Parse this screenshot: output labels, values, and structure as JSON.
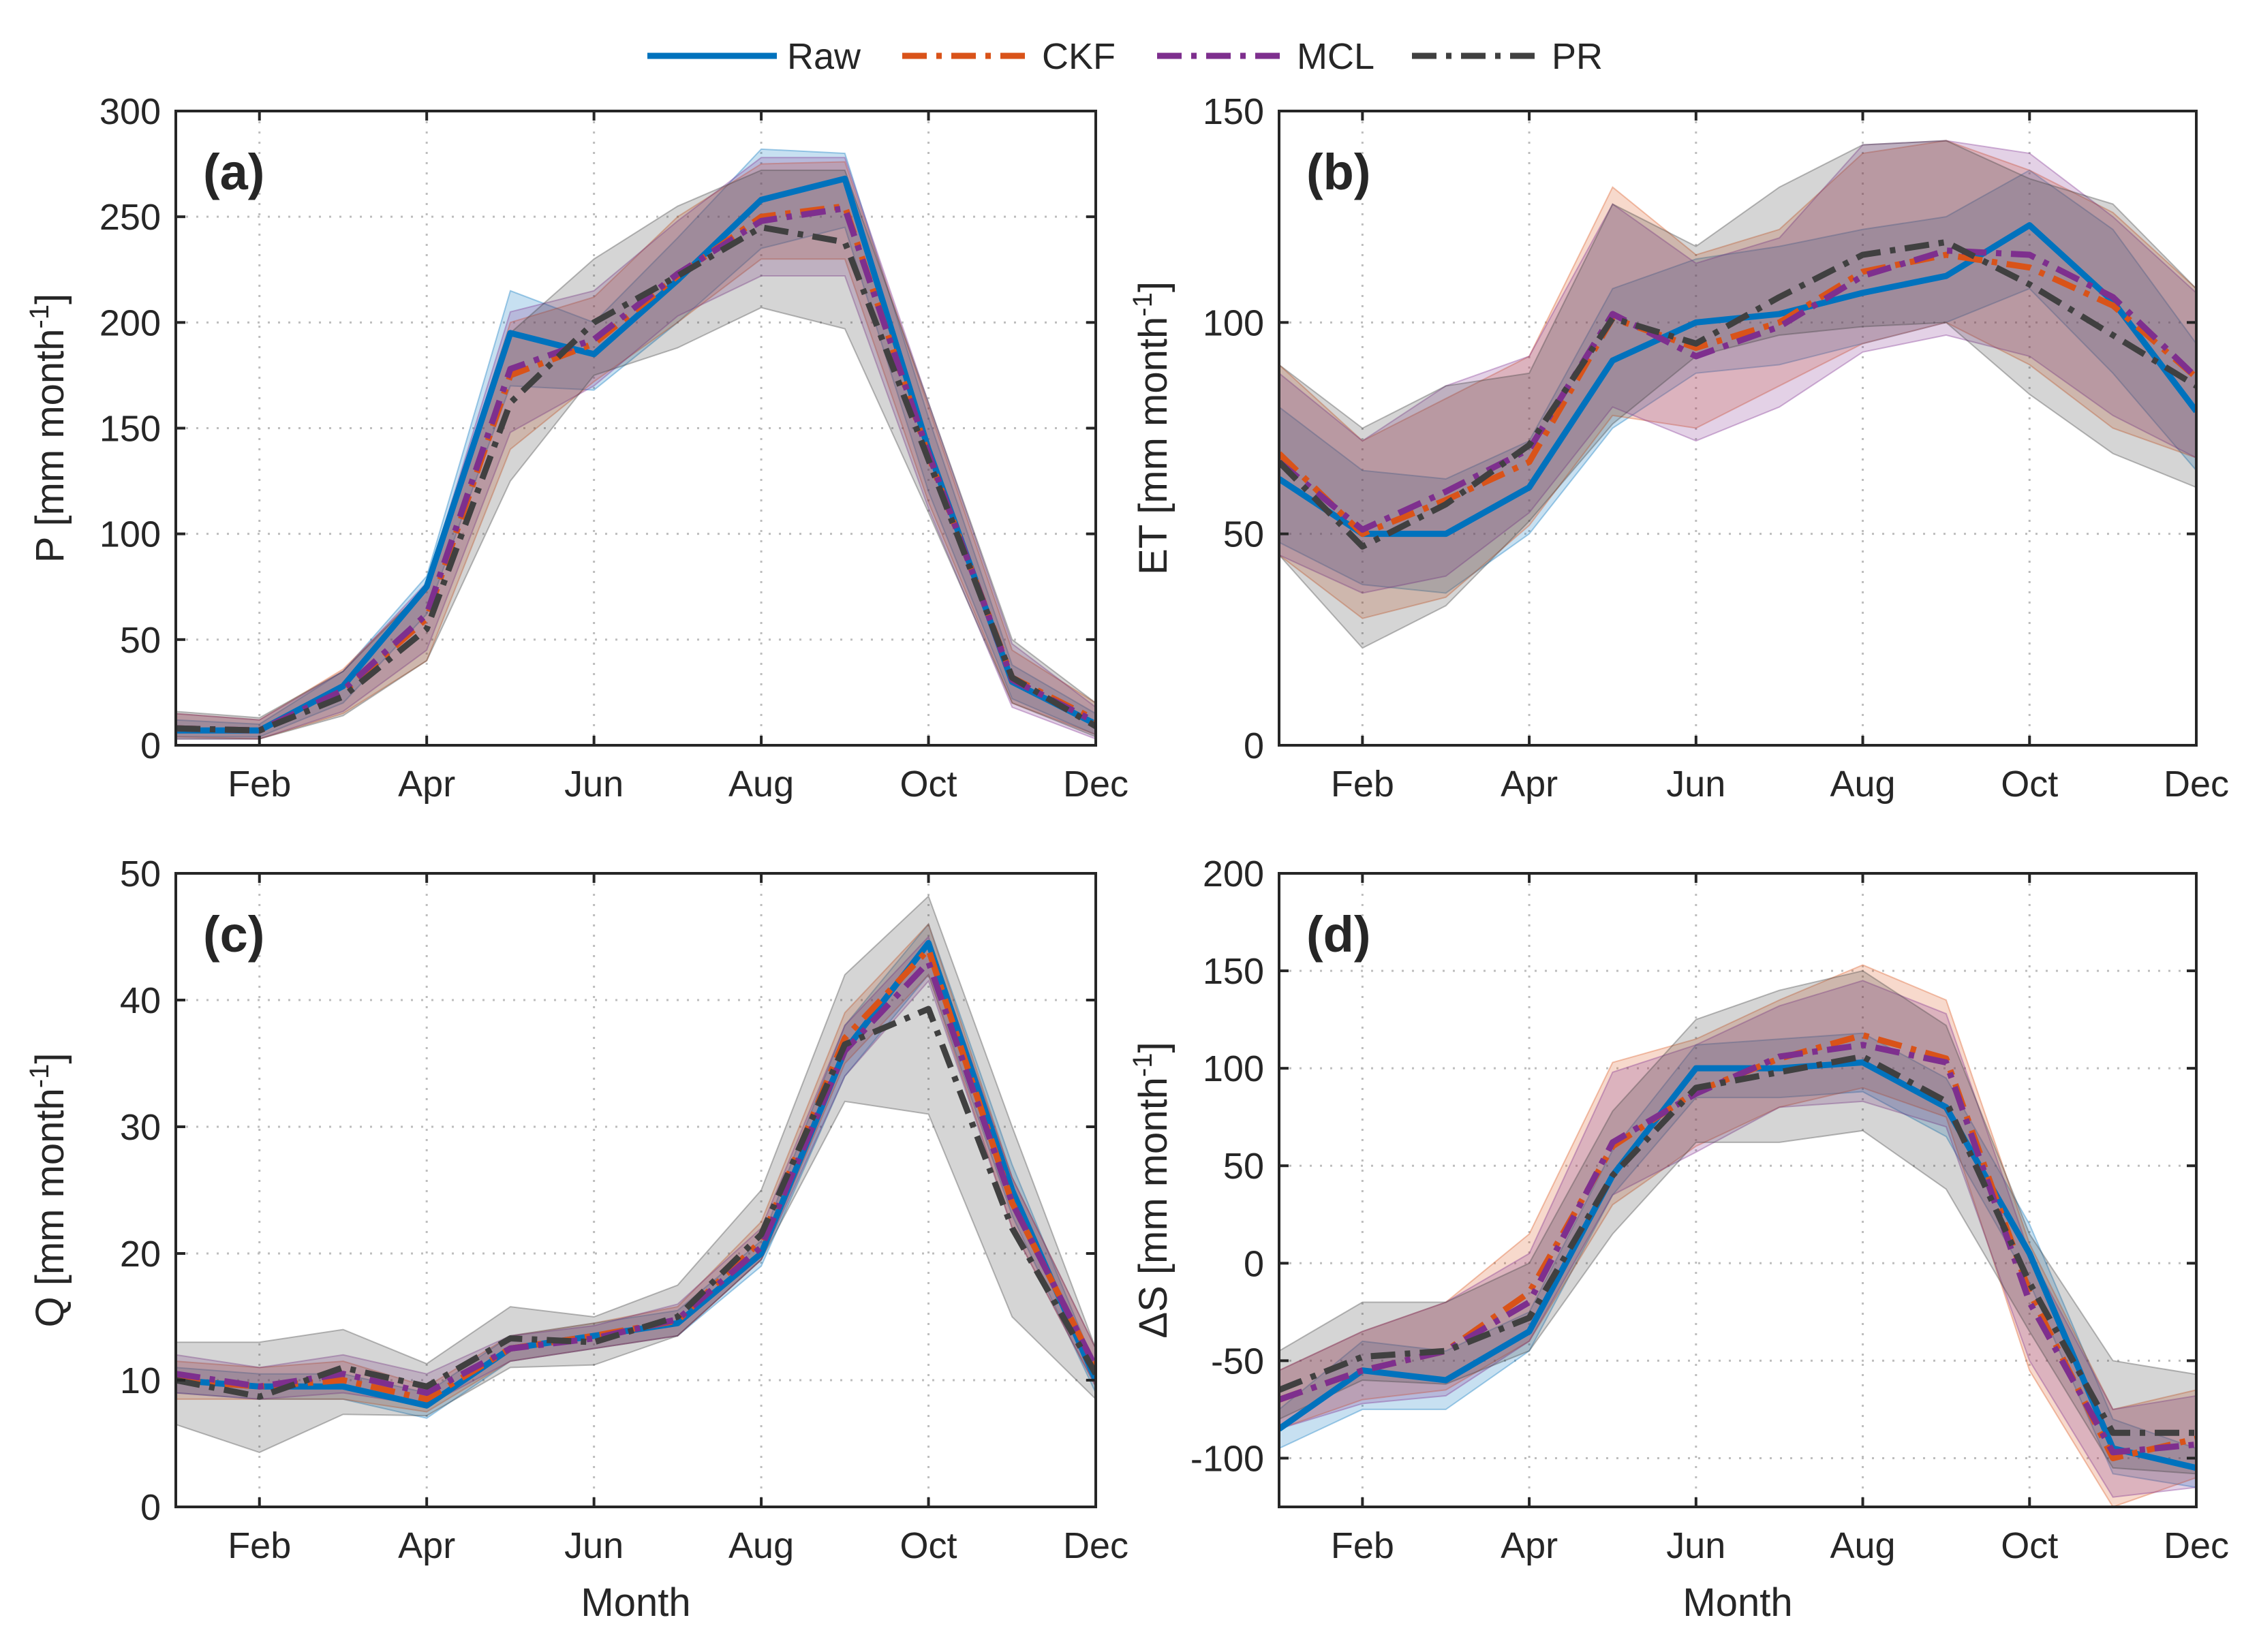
{
  "figure": {
    "legend": [
      {
        "name": "Raw",
        "color": "#0072BD",
        "dash": "solid"
      },
      {
        "name": "CKF",
        "color": "#D95319",
        "dash": "dashdot"
      },
      {
        "name": "MCL",
        "color": "#7E2F8E",
        "dash": "dashdot"
      },
      {
        "name": "PR",
        "color": "#404040",
        "dash": "dashdot"
      }
    ]
  },
  "chart_data": [
    {
      "type": "line",
      "panel": "(a)",
      "title": "",
      "xlabel": "",
      "ylabel": "P [mm month",
      "ylabel_sup": "-1",
      "ylabel_tail": "]",
      "x": [
        1,
        2,
        3,
        4,
        5,
        6,
        7,
        8,
        9,
        10,
        11,
        12
      ],
      "xlim": [
        1,
        12
      ],
      "xticks": [
        2,
        4,
        6,
        8,
        10,
        12
      ],
      "xtick_labels": [
        "Feb",
        "Apr",
        "Jun",
        "Aug",
        "Oct",
        "Dec"
      ],
      "ylim": [
        0,
        300
      ],
      "yticks": [
        0,
        50,
        100,
        150,
        200,
        250,
        300
      ],
      "grid": true,
      "series": [
        {
          "name": "Raw",
          "values": [
            7,
            7,
            28,
            75,
            195,
            185,
            220,
            258,
            268,
            140,
            30,
            10
          ],
          "band_lo": [
            4,
            4,
            20,
            62,
            170,
            168,
            200,
            235,
            245,
            120,
            22,
            5
          ],
          "band_hi": [
            12,
            10,
            35,
            80,
            215,
            200,
            240,
            282,
            280,
            155,
            38,
            15
          ]
        },
        {
          "name": "CKF",
          "values": [
            8,
            7,
            25,
            60,
            175,
            190,
            222,
            250,
            255,
            137,
            32,
            12
          ],
          "band_lo": [
            4,
            3,
            15,
            40,
            140,
            172,
            200,
            230,
            230,
            115,
            20,
            5
          ],
          "band_hi": [
            15,
            12,
            36,
            75,
            200,
            212,
            250,
            275,
            276,
            160,
            45,
            20
          ]
        },
        {
          "name": "MCL",
          "values": [
            8,
            7,
            26,
            62,
            178,
            192,
            223,
            248,
            254,
            138,
            31,
            11
          ],
          "band_lo": [
            3,
            3,
            16,
            45,
            148,
            170,
            203,
            222,
            222,
            112,
            18,
            3
          ],
          "band_hi": [
            15,
            12,
            35,
            77,
            205,
            215,
            248,
            278,
            278,
            162,
            48,
            18
          ]
        },
        {
          "name": "PR",
          "values": [
            8,
            7,
            23,
            55,
            162,
            200,
            222,
            245,
            238,
            135,
            32,
            9
          ],
          "band_lo": [
            3,
            3,
            14,
            40,
            125,
            175,
            188,
            207,
            197,
            110,
            20,
            4
          ],
          "band_hi": [
            16,
            13,
            35,
            75,
            195,
            230,
            255,
            272,
            272,
            162,
            50,
            20
          ]
        }
      ]
    },
    {
      "type": "line",
      "panel": "(b)",
      "title": "",
      "xlabel": "",
      "ylabel": "ET [mm month",
      "ylabel_sup": "-1",
      "ylabel_tail": "]",
      "x": [
        1,
        2,
        3,
        4,
        5,
        6,
        7,
        8,
        9,
        10,
        11,
        12
      ],
      "xlim": [
        1,
        12
      ],
      "xticks": [
        2,
        4,
        6,
        8,
        10,
        12
      ],
      "xtick_labels": [
        "Feb",
        "Apr",
        "Jun",
        "Aug",
        "Oct",
        "Dec"
      ],
      "ylim": [
        0,
        150
      ],
      "yticks": [
        0,
        50,
        100,
        150
      ],
      "grid": true,
      "series": [
        {
          "name": "Raw",
          "values": [
            63,
            50,
            50,
            61,
            91,
            100,
            102,
            107,
            111,
            123,
            105,
            79
          ],
          "band_lo": [
            48,
            38,
            36,
            50,
            75,
            88,
            90,
            95,
            100,
            108,
            88,
            65
          ],
          "band_hi": [
            80,
            65,
            63,
            72,
            108,
            115,
            118,
            122,
            125,
            136,
            122,
            95
          ]
        },
        {
          "name": "CKF",
          "values": [
            69,
            50,
            58,
            67,
            101,
            94,
            100,
            112,
            116,
            113,
            104,
            87
          ],
          "band_lo": [
            45,
            30,
            35,
            52,
            78,
            75,
            85,
            95,
            100,
            90,
            75,
            68
          ],
          "band_hi": [
            90,
            72,
            82,
            92,
            132,
            116,
            122,
            140,
            143,
            136,
            126,
            108
          ]
        },
        {
          "name": "MCL",
          "values": [
            67,
            51,
            60,
            70,
            102,
            92,
            99,
            111,
            117,
            116,
            106,
            87
          ],
          "band_lo": [
            45,
            36,
            40,
            55,
            80,
            72,
            80,
            93,
            97,
            92,
            78,
            68
          ],
          "band_hi": [
            88,
            72,
            85,
            92,
            128,
            114,
            120,
            142,
            143,
            140,
            125,
            107
          ]
        },
        {
          "name": "PR",
          "values": [
            67,
            47,
            57,
            71,
            101,
            95,
            106,
            116,
            119,
            109,
            97,
            85
          ],
          "band_lo": [
            45,
            23,
            33,
            53,
            76,
            92,
            97,
            99,
            100,
            83,
            69,
            61
          ],
          "band_hi": [
            90,
            75,
            85,
            88,
            128,
            118,
            132,
            142,
            143,
            134,
            128,
            108
          ]
        }
      ]
    },
    {
      "type": "line",
      "panel": "(c)",
      "title": "",
      "xlabel": "Month",
      "ylabel": "Q [mm month",
      "ylabel_sup": "-1",
      "ylabel_tail": "]",
      "x": [
        1,
        2,
        3,
        4,
        5,
        6,
        7,
        8,
        9,
        10,
        11,
        12
      ],
      "xlim": [
        1,
        12
      ],
      "xticks": [
        2,
        4,
        6,
        8,
        10,
        12
      ],
      "xtick_labels": [
        "Feb",
        "Apr",
        "Jun",
        "Aug",
        "Oct",
        "Dec"
      ],
      "ylim": [
        0,
        50
      ],
      "yticks": [
        0,
        10,
        20,
        30,
        40,
        50
      ],
      "grid": true,
      "series": [
        {
          "name": "Raw",
          "values": [
            10,
            9.5,
            9.5,
            8,
            12.5,
            13.5,
            14.5,
            20,
            36,
            44.5,
            25,
            10
          ],
          "band_lo": [
            9,
            8.5,
            8.5,
            7,
            11.5,
            12.5,
            13.5,
            19,
            34,
            42,
            23,
            9
          ],
          "band_hi": [
            11,
            10.5,
            10.5,
            9,
            13.5,
            14.5,
            15.5,
            21,
            38,
            46,
            27,
            11
          ]
        },
        {
          "name": "CKF",
          "values": [
            10,
            9.5,
            10,
            8.5,
            12.5,
            13.5,
            14.7,
            21,
            37,
            44,
            24,
            11
          ],
          "band_lo": [
            8.5,
            8.5,
            8.5,
            7.5,
            11.5,
            12.5,
            13.5,
            19.5,
            35,
            42,
            22,
            9.5
          ],
          "band_hi": [
            11.5,
            11,
            11.5,
            9.5,
            13.5,
            14.5,
            15.8,
            22.5,
            39,
            46,
            26,
            12.5
          ]
        },
        {
          "name": "MCL",
          "values": [
            10.5,
            9.5,
            10.5,
            9,
            12.5,
            13.3,
            14.8,
            20.5,
            36,
            43,
            24,
            11
          ],
          "band_lo": [
            9,
            8.5,
            9,
            8,
            11.5,
            12.5,
            13.5,
            19.5,
            34,
            41.5,
            22,
            9.5
          ],
          "band_hi": [
            12,
            11,
            12,
            10.5,
            13.5,
            14.3,
            16,
            22,
            38,
            45,
            26,
            12.5
          ]
        },
        {
          "name": "PR",
          "values": [
            10,
            8.7,
            11,
            9.5,
            13.3,
            13,
            15,
            21.5,
            36.5,
            39.3,
            22,
            10.5
          ],
          "band_lo": [
            6.5,
            4.3,
            7.3,
            7.2,
            11,
            11.2,
            13.5,
            19.5,
            32,
            31,
            15,
            8.5
          ],
          "band_hi": [
            13,
            13,
            14,
            11.3,
            15.8,
            15,
            17.5,
            25,
            42,
            48.2,
            30,
            12.5
          ]
        }
      ]
    },
    {
      "type": "line",
      "panel": "(d)",
      "title": "",
      "xlabel": "Month",
      "ylabel": "ΔS [mm month",
      "ylabel_sup": "-1",
      "ylabel_tail": "]",
      "x": [
        1,
        2,
        3,
        4,
        5,
        6,
        7,
        8,
        9,
        10,
        11,
        12
      ],
      "xlim": [
        1,
        12
      ],
      "xticks": [
        2,
        4,
        6,
        8,
        10,
        12
      ],
      "xtick_labels": [
        "Feb",
        "Apr",
        "Jun",
        "Aug",
        "Oct",
        "Dec"
      ],
      "ylim": [
        -125,
        200
      ],
      "yticks": [
        -100,
        -50,
        0,
        50,
        100,
        150,
        200
      ],
      "grid": true,
      "series": [
        {
          "name": "Raw",
          "values": [
            -85,
            -55,
            -60,
            -35,
            45,
            100,
            100,
            103,
            80,
            5,
            -95,
            -105
          ],
          "band_lo": [
            -95,
            -75,
            -75,
            -45,
            35,
            85,
            85,
            88,
            65,
            -10,
            -108,
            -115
          ],
          "band_hi": [
            -75,
            -40,
            -45,
            -25,
            58,
            112,
            115,
            118,
            95,
            20,
            -80,
            -95
          ]
        },
        {
          "name": "CKF",
          "values": [
            -70,
            -55,
            -45,
            -15,
            60,
            88,
            105,
            117,
            105,
            -15,
            -100,
            -90
          ],
          "band_lo": [
            -85,
            -70,
            -65,
            -40,
            30,
            60,
            80,
            90,
            75,
            -55,
            -125,
            -110
          ],
          "band_hi": [
            -55,
            -35,
            -20,
            15,
            103,
            115,
            135,
            153,
            135,
            10,
            -75,
            -65
          ]
        },
        {
          "name": "MCL",
          "values": [
            -70,
            -55,
            -45,
            -20,
            62,
            87,
            106,
            112,
            103,
            -20,
            -97,
            -93
          ],
          "band_lo": [
            -85,
            -72,
            -68,
            -40,
            35,
            57,
            80,
            83,
            70,
            -50,
            -120,
            -115
          ],
          "band_hi": [
            -55,
            -35,
            -20,
            5,
            98,
            112,
            132,
            145,
            128,
            5,
            -75,
            -68
          ]
        },
        {
          "name": "PR",
          "values": [
            -65,
            -48,
            -45,
            -28,
            45,
            90,
            98,
            106,
            83,
            -10,
            -87,
            -87
          ],
          "band_lo": [
            -80,
            -60,
            -62,
            -45,
            15,
            62,
            62,
            68,
            38,
            -35,
            -105,
            -108
          ],
          "band_hi": [
            -45,
            -20,
            -20,
            0,
            78,
            125,
            140,
            150,
            122,
            15,
            -50,
            -57
          ]
        }
      ]
    }
  ]
}
